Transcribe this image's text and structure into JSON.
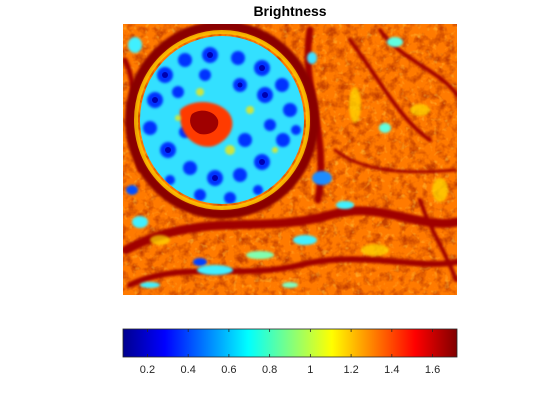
{
  "chart_data": {
    "type": "heatmap",
    "title": "Brightness",
    "colormap": "jet",
    "xlabel": "",
    "ylabel": "",
    "axes_visible": false,
    "colorbar": {
      "location": "bottom",
      "range": [
        0.08,
        1.72
      ],
      "ticks": [
        0.2,
        0.4,
        0.6,
        0.8,
        1.0,
        1.2,
        1.4,
        1.6
      ],
      "tick_labels": [
        "0.2",
        "0.4",
        "0.6",
        "0.8",
        "1",
        "1.2",
        "1.4",
        "1.6"
      ]
    }
  }
}
